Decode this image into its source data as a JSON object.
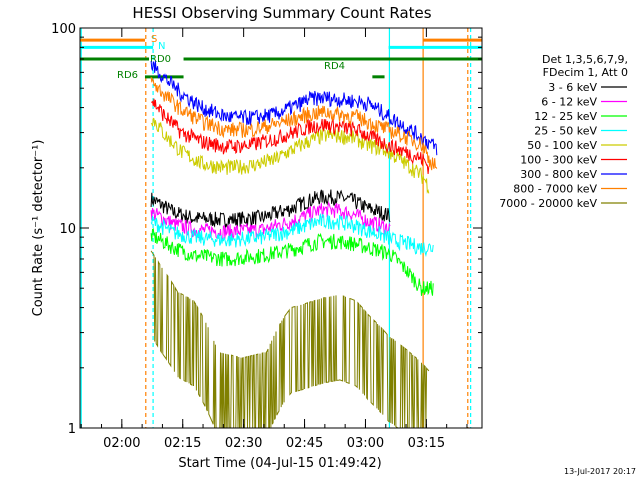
{
  "chart_data": {
    "type": "line",
    "title": "HESSI Observing Summary Count Rates",
    "xlabel": "Start Time (04-Jul-15 01:49:42)",
    "ylabel": "Count Rate (s⁻¹ detector⁻¹)",
    "x_unit": "minutes after 01:49:42",
    "xlim": [
      0,
      99
    ],
    "ylim": [
      1,
      100
    ],
    "yscale": "log",
    "grid": false,
    "x_ticks": [
      {
        "x": 10.3,
        "label": "02:00"
      },
      {
        "x": 25.3,
        "label": "02:15"
      },
      {
        "x": 40.3,
        "label": "02:30"
      },
      {
        "x": 55.3,
        "label": "02:45"
      },
      {
        "x": 70.3,
        "label": "03:00"
      },
      {
        "x": 85.3,
        "label": "03:15"
      }
    ],
    "y_ticks": [
      {
        "y": 1,
        "label": "1"
      },
      {
        "y": 10,
        "label": "10"
      },
      {
        "y": 100,
        "label": "100"
      }
    ],
    "legend": {
      "placement": "right",
      "header": [
        "Det 1,3,5,6,7,9,",
        "FDecim 1, Att 0"
      ]
    },
    "series": [
      {
        "name": "3 - 6 keV",
        "color": "#000000",
        "t": [
          17.5,
          23,
          28,
          36,
          45,
          52,
          55.5,
          59,
          63,
          67,
          71,
          74,
          76.5
        ],
        "y": [
          14,
          12,
          11.2,
          11,
          11.3,
          12.5,
          13.5,
          14.3,
          14.3,
          13.8,
          12.5,
          12,
          11.5
        ]
      },
      {
        "name": "6 - 12 keV",
        "color": "#ff00ff",
        "t": [
          17.5,
          23,
          28,
          36,
          45,
          52,
          55.5,
          59,
          63,
          67,
          71,
          74,
          76.5
        ],
        "y": [
          12,
          10.5,
          9.8,
          9.6,
          9.8,
          10.8,
          11.5,
          12.3,
          12.3,
          11.8,
          10.8,
          10.3,
          9.9
        ]
      },
      {
        "name": "12 - 25 keV",
        "color": "#00ff00",
        "t": [
          17.5,
          23,
          28,
          36,
          45,
          52,
          55.5,
          59,
          63,
          67,
          71,
          74,
          76.5,
          84,
          87
        ],
        "y": [
          9.2,
          8,
          7.3,
          7,
          7.3,
          7.8,
          8.2,
          8.6,
          8.6,
          8.4,
          8,
          7.7,
          7.4,
          5,
          5
        ]
      },
      {
        "name": "25 - 50 keV",
        "color": "#00ffff",
        "t": [
          17.5,
          23,
          28,
          36,
          45,
          52,
          55.5,
          59,
          63,
          67,
          71,
          74,
          76.5,
          84,
          87
        ],
        "y": [
          10.8,
          9.5,
          9,
          8.7,
          9,
          9.7,
          10.3,
          10.8,
          10.8,
          10.4,
          9.7,
          9.3,
          8.8,
          8,
          8
        ]
      },
      {
        "name": "50 - 100 keV",
        "color": "#cccc00",
        "t": [
          17.5,
          21,
          25,
          30,
          36,
          42,
          48,
          54.5,
          56,
          60,
          64,
          68,
          71,
          74,
          76,
          84.5,
          86
        ],
        "y": [
          36,
          29,
          24,
          21,
          20,
          20.5,
          22,
          26,
          27,
          29,
          29,
          28,
          26,
          25,
          24,
          18,
          16
        ]
      },
      {
        "name": "100 - 300 keV",
        "color": "#ff0000",
        "t": [
          17.5,
          21,
          25,
          30,
          36,
          42,
          48,
          54.5,
          56,
          60,
          64,
          68,
          71,
          74,
          76,
          84.5,
          86
        ],
        "y": [
          44,
          36,
          30,
          27,
          25.5,
          26,
          28,
          31,
          32,
          33,
          32,
          31,
          29,
          27,
          26,
          22,
          20
        ]
      },
      {
        "name": "300 - 800 keV",
        "color": "#0000ff",
        "t": [
          17.5,
          21,
          25,
          30,
          36,
          42,
          48,
          54.5,
          56,
          60,
          64,
          68,
          71,
          77,
          84.5,
          88
        ],
        "y": [
          66,
          56,
          47,
          40,
          36,
          35.5,
          37,
          42,
          44,
          45,
          44,
          43,
          42,
          35,
          28,
          25
        ]
      },
      {
        "name": "800 - 7000 keV",
        "color": "#ff8000",
        "t": [
          17.5,
          21,
          25,
          30,
          36,
          42,
          48,
          54.5,
          56,
          60,
          64,
          68,
          71,
          74,
          76,
          84.5,
          86,
          88
        ],
        "y": [
          54,
          46,
          39,
          34,
          31,
          31,
          33,
          36,
          37,
          38,
          37,
          36,
          34,
          32,
          31,
          26,
          22,
          20
        ]
      },
      {
        "name": "7000 - 20000 keV",
        "color": "#808000",
        "t": [
          17.5,
          20,
          24,
          28,
          34,
          40,
          46,
          50,
          52,
          55,
          60,
          64,
          68,
          71,
          74,
          76,
          84.5,
          86
        ],
        "y": [
          4.8,
          4,
          3,
          2.7,
          1.5,
          1.4,
          1.5,
          2.2,
          2.5,
          2.6,
          2.8,
          2.9,
          2.7,
          2.3,
          2,
          1.8,
          1.3,
          1.2
        ]
      }
    ],
    "flags": [
      {
        "label": "S",
        "color": "#ff8000",
        "y": 87,
        "segments": [
          [
            0,
            16
          ],
          [
            84.5,
            99
          ]
        ]
      },
      {
        "label": "N",
        "color": "#00ffff",
        "y": 80,
        "segments": [
          [
            0,
            18
          ],
          [
            76,
            99
          ]
        ]
      },
      {
        "label": "RD0",
        "color": "#008000",
        "y": 70,
        "segments": [
          [
            0,
            17
          ],
          [
            25.5,
            99
          ]
        ]
      },
      {
        "label": "RD4",
        "color": "#008000",
        "y": 70,
        "segments": []
      },
      {
        "label": "RD6",
        "color": "#008000",
        "y": 57,
        "segments": [
          [
            16,
            25.5
          ],
          [
            72,
            75
          ]
        ]
      }
    ],
    "vertical_markers": [
      {
        "x": 0.3,
        "color": "#00ffff",
        "dashed": false
      },
      {
        "x": 16.2,
        "color": "#ff8000",
        "dashed": true
      },
      {
        "x": 18,
        "color": "#00ffff",
        "dashed": true
      },
      {
        "x": 76.2,
        "color": "#00ffff",
        "dashed": false
      },
      {
        "x": 84.5,
        "color": "#ff8000",
        "dashed": false
      },
      {
        "x": 95.5,
        "color": "#ff8000",
        "dashed": true
      },
      {
        "x": 96.2,
        "color": "#00ffff",
        "dashed": true
      }
    ],
    "footer_date": "13-Jul-2017 20:17"
  }
}
